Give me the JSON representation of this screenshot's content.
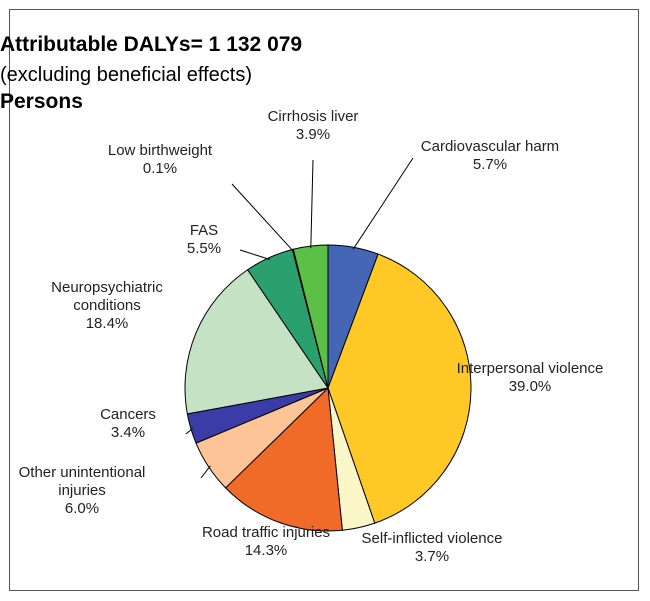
{
  "chart_data": {
    "type": "pie",
    "title": "Attributable DALYs= 1 132 079",
    "subtitle": "(excluding beneficial effects)",
    "group": "Persons",
    "slices": [
      {
        "label": [
          "Cardiovascular harm"
        ],
        "value_text": "5.7%",
        "value": 5.7,
        "color": "#4466b4"
      },
      {
        "label": [
          "Interpersonal violence"
        ],
        "value_text": "39.0%",
        "value": 39.0,
        "color": "#fec826"
      },
      {
        "label": [
          "Self-inflicted violence"
        ],
        "value_text": "3.7%",
        "value": 3.7,
        "color": "#fbf6c8"
      },
      {
        "label": [
          "Road traffic injuries"
        ],
        "value_text": "14.3%",
        "value": 14.3,
        "color": "#f06a28"
      },
      {
        "label": [
          "Other unintentional",
          "injuries"
        ],
        "value_text": "6.0%",
        "value": 6.0,
        "color": "#fcc497"
      },
      {
        "label": [
          "Cancers"
        ],
        "value_text": "3.4%",
        "value": 3.4,
        "color": "#3c3ca8"
      },
      {
        "label": [
          "Neuropsychiatric",
          "conditions"
        ],
        "value_text": "18.4%",
        "value": 18.4,
        "color": "#c6e2c4"
      },
      {
        "label": [
          "FAS"
        ],
        "value_text": "5.5%",
        "value": 5.5,
        "color": "#2aa06e"
      },
      {
        "label": [
          "Low birthweight"
        ],
        "value_text": "0.1%",
        "value": 0.1,
        "color": "#1a6e3e"
      },
      {
        "label": [
          "Cirrhosis liver"
        ],
        "value_text": "3.9%",
        "value": 3.9,
        "color": "#5cbf48"
      }
    ]
  }
}
